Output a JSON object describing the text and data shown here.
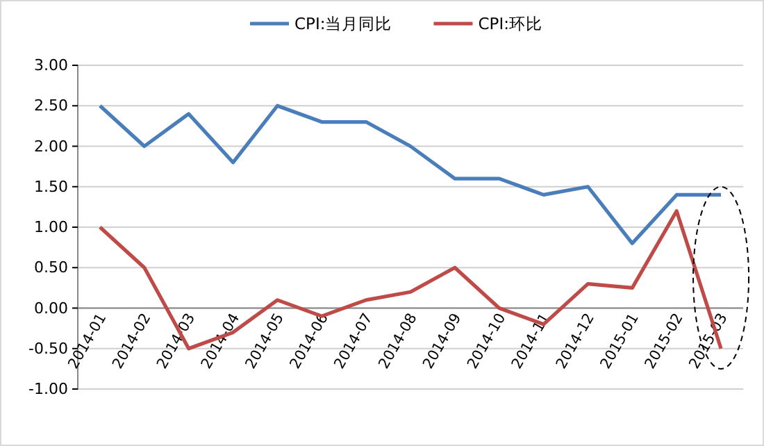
{
  "chart_data": {
    "type": "line",
    "categories": [
      "2014-01",
      "2014-02",
      "2014-03",
      "2014-04",
      "2014-05",
      "2014-06",
      "2014-07",
      "2014-08",
      "2014-09",
      "2014-10",
      "2014-11",
      "2014-12",
      "2015-01",
      "2015-02",
      "2015-03"
    ],
    "series": [
      {
        "name": "CPI:当月同比",
        "color": "#4a7ebb",
        "values": [
          2.5,
          2.0,
          2.4,
          1.8,
          2.5,
          2.3,
          2.3,
          2.0,
          1.6,
          1.6,
          1.4,
          1.5,
          0.8,
          1.4,
          1.4
        ]
      },
      {
        "name": "CPI:环比",
        "color": "#be4b48",
        "values": [
          1.0,
          0.5,
          -0.5,
          -0.3,
          0.1,
          -0.1,
          0.1,
          0.2,
          0.5,
          0.0,
          -0.2,
          0.3,
          0.25,
          1.2,
          -0.5
        ]
      }
    ],
    "ylim": [
      -1,
      3
    ],
    "yticks": [
      {
        "value": -1,
        "label": "-1.00"
      },
      {
        "value": -0.5,
        "label": "-0.50"
      },
      {
        "value": 0,
        "label": "0.00"
      },
      {
        "value": 0.5,
        "label": "0.50"
      },
      {
        "value": 1,
        "label": "1.00"
      },
      {
        "value": 1.5,
        "label": "1.50"
      },
      {
        "value": 2,
        "label": "2.00"
      },
      {
        "value": 2.5,
        "label": "2.50"
      },
      {
        "value": 3,
        "label": "3.00"
      }
    ],
    "grid": "y",
    "legend": "top",
    "marker": "none",
    "line_style": "solid"
  }
}
